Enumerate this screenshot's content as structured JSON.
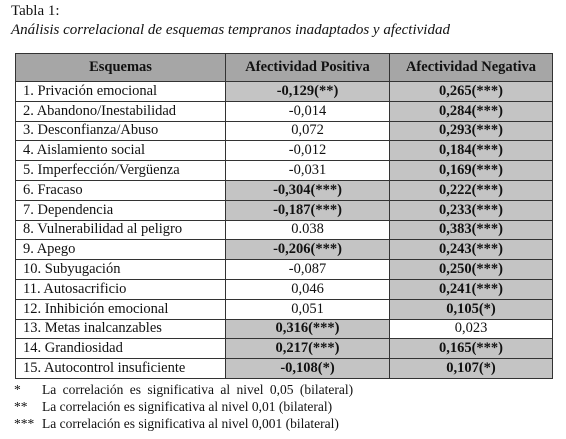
{
  "caption": {
    "label": "Tabla 1:",
    "title": "Análisis correlacional de esquemas tempranos inadaptados y afectividad"
  },
  "table": {
    "headers": [
      "Esquemas",
      "Afectividad Positiva",
      "Afectividad Negativa"
    ],
    "rows": [
      {
        "schema": "1. Privación emocional",
        "pos": "-0,129(**)",
        "pos_sig": true,
        "neg": "0,265(***)",
        "neg_sig": true
      },
      {
        "schema": "2. Abandono/Inestabilidad",
        "pos": "-0,014",
        "pos_sig": false,
        "neg": "0,284(***)",
        "neg_sig": true
      },
      {
        "schema": "3. Desconfianza/Abuso",
        "pos": "0,072",
        "pos_sig": false,
        "neg": "0,293(***)",
        "neg_sig": true
      },
      {
        "schema": "4. Aislamiento social",
        "pos": "-0,012",
        "pos_sig": false,
        "neg": "0,184(***)",
        "neg_sig": true
      },
      {
        "schema": "5. Imperfección/Vergüenza",
        "pos": "-0,031",
        "pos_sig": false,
        "neg": "0,169(***)",
        "neg_sig": true
      },
      {
        "schema": "6. Fracaso",
        "pos": "-0,304(***)",
        "pos_sig": true,
        "neg": "0,222(***)",
        "neg_sig": true
      },
      {
        "schema": "7. Dependencia",
        "pos": "-0,187(***)",
        "pos_sig": true,
        "neg": "0,233(***)",
        "neg_sig": true
      },
      {
        "schema": "8. Vulnerabilidad al peligro",
        "pos": "0.038",
        "pos_sig": false,
        "neg": "0,383(***)",
        "neg_sig": true
      },
      {
        "schema": "9. Apego",
        "pos": "-0,206(***)",
        "pos_sig": true,
        "neg": "0,243(***)",
        "neg_sig": true
      },
      {
        "schema": "10. Subyugación",
        "pos": "-0,087",
        "pos_sig": false,
        "neg": "0,250(***)",
        "neg_sig": true
      },
      {
        "schema": "11. Autosacrificio",
        "pos": "0,046",
        "pos_sig": false,
        "neg": "0,241(***)",
        "neg_sig": true
      },
      {
        "schema": "12. Inhibición emocional",
        "pos": "0,051",
        "pos_sig": false,
        "neg": "0,105(*)",
        "neg_sig": true
      },
      {
        "schema": "13. Metas inalcanzables",
        "pos": "0,316(***)",
        "pos_sig": true,
        "neg": "0,023",
        "neg_sig": false
      },
      {
        "schema": "14. Grandiosidad",
        "pos": "0,217(***)",
        "pos_sig": true,
        "neg": "0,165(***)",
        "neg_sig": true
      },
      {
        "schema": "15. Autocontrol insuficiente",
        "pos": "-0,108(*)",
        "pos_sig": true,
        "neg": "0,107(*)",
        "neg_sig": true
      }
    ]
  },
  "notes": [
    {
      "symbol": "*",
      "text": "La correlación es significativa al nivel 0,05 (bilateral)"
    },
    {
      "symbol": "**",
      "text": "La correlación es significativa al nivel 0,01 (bilateral)"
    },
    {
      "symbol": "***",
      "text": "La correlación es significativa al nivel 0,001 (bilateral)"
    }
  ],
  "colors": {
    "header_fill": "#a6a6a6",
    "significant_fill": "#c4c4c4"
  }
}
